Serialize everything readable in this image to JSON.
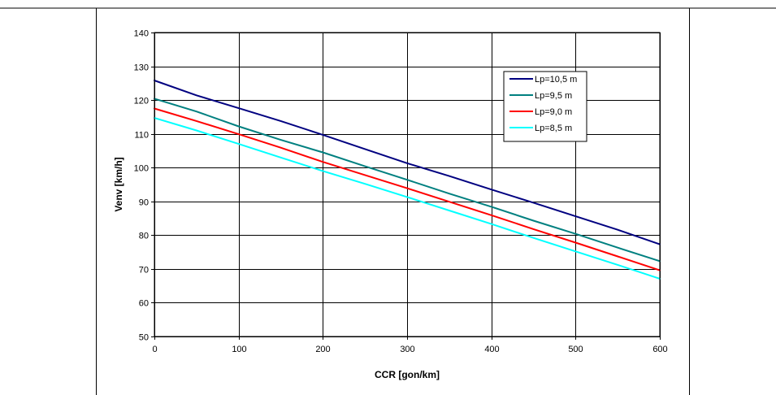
{
  "chart_data": {
    "type": "line",
    "title": "",
    "xlabel": "CCR [gon/km]",
    "ylabel": "Venv [km/h]",
    "xlim": [
      0,
      600
    ],
    "ylim": [
      50,
      140
    ],
    "xticks": [
      0,
      100,
      200,
      300,
      400,
      500,
      600
    ],
    "yticks": [
      50,
      60,
      70,
      80,
      90,
      100,
      110,
      120,
      130,
      140
    ],
    "grid": true,
    "legend_position": "top-right",
    "series": [
      {
        "name": "Lp=10,5 m",
        "color": "#000080",
        "x": [
          0,
          50,
          100,
          150,
          200,
          250,
          300,
          350,
          400,
          450,
          500,
          550,
          600
        ],
        "y": [
          125.8,
          121.4,
          117.6,
          113.8,
          109.7,
          105.5,
          101.3,
          97.5,
          93.5,
          89.6,
          85.6,
          81.6,
          77.3
        ]
      },
      {
        "name": "Lp=9,5 m",
        "color": "#008080",
        "x": [
          0,
          50,
          100,
          150,
          200,
          250,
          300,
          350,
          400,
          450,
          500,
          550,
          600
        ],
        "y": [
          120.4,
          116.6,
          112.2,
          108.2,
          104.5,
          100.4,
          96.4,
          92.3,
          88.4,
          84.3,
          80.4,
          76.3,
          72.3
        ]
      },
      {
        "name": "Lp=9,0 m",
        "color": "#ff0000",
        "x": [
          0,
          50,
          100,
          150,
          200,
          250,
          300,
          350,
          400,
          450,
          500,
          550,
          600
        ],
        "y": [
          117.5,
          113.8,
          109.9,
          105.9,
          101.7,
          97.8,
          93.9,
          89.9,
          85.9,
          81.8,
          77.8,
          73.7,
          69.6
        ]
      },
      {
        "name": "Lp=8,5 m",
        "color": "#00ffff",
        "x": [
          0,
          50,
          100,
          150,
          200,
          250,
          300,
          350,
          400,
          450,
          500,
          550,
          600
        ],
        "y": [
          114.7,
          111.0,
          107.0,
          103.0,
          99.0,
          95.2,
          91.3,
          87.3,
          83.3,
          79.2,
          75.2,
          71.2,
          67.1
        ]
      }
    ]
  }
}
